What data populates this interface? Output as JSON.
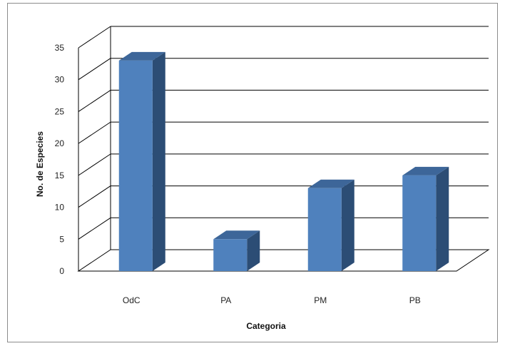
{
  "chart_data": {
    "type": "bar",
    "title": "",
    "xlabel": "Categoria",
    "ylabel": "No.  de Especies",
    "categories": [
      "OdC",
      "PA",
      "PM",
      "PB"
    ],
    "values": [
      33,
      5,
      13,
      15
    ],
    "ylim": [
      0,
      35
    ],
    "yticks": [
      0,
      5,
      10,
      15,
      20,
      25,
      30,
      35
    ],
    "grid": true,
    "bar_color": "#4f81bd",
    "bar_side_color": "#2c4d75",
    "bar_top_color": "#3d6699",
    "grid_color": "#000000"
  }
}
